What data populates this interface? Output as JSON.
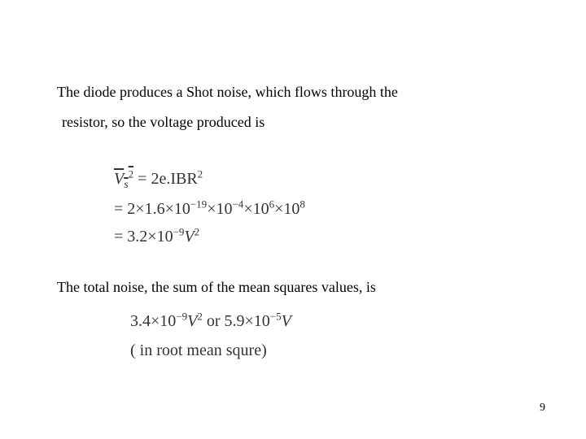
{
  "text": {
    "line1": "The diode produces a Shot noise, which flows through the",
    "line2": "resistor, so the voltage produced is",
    "line3": "The  total noise, the sum of the mean squares values, is"
  },
  "eq1": {
    "lhs_var": "V",
    "lhs_sub": "s",
    "exp2": "2",
    "rhs1": " = 2e.IBR",
    "rhs1_sup": "2",
    "l2a": " = 2",
    "times": "×",
    "v1": "1.6",
    "v2": "10",
    "e1": "−19",
    "v3": "10",
    "e2": "−4",
    "v4": "10",
    "e3": "6",
    "v5": "10",
    "e4": "8",
    "l3a": " = 3.2",
    "v6": "10",
    "e5": "−9",
    "V": "V",
    "V2": "2"
  },
  "eq2": {
    "a": "3.4",
    "t": "×",
    "b": "10",
    "e1": "−9",
    "V": "V",
    "V2": "2",
    "or": "   or   ",
    "c": "5.9",
    "d": "10",
    "e2": "−5",
    "note": "(   in   root    mean    squre)"
  },
  "page": "9"
}
